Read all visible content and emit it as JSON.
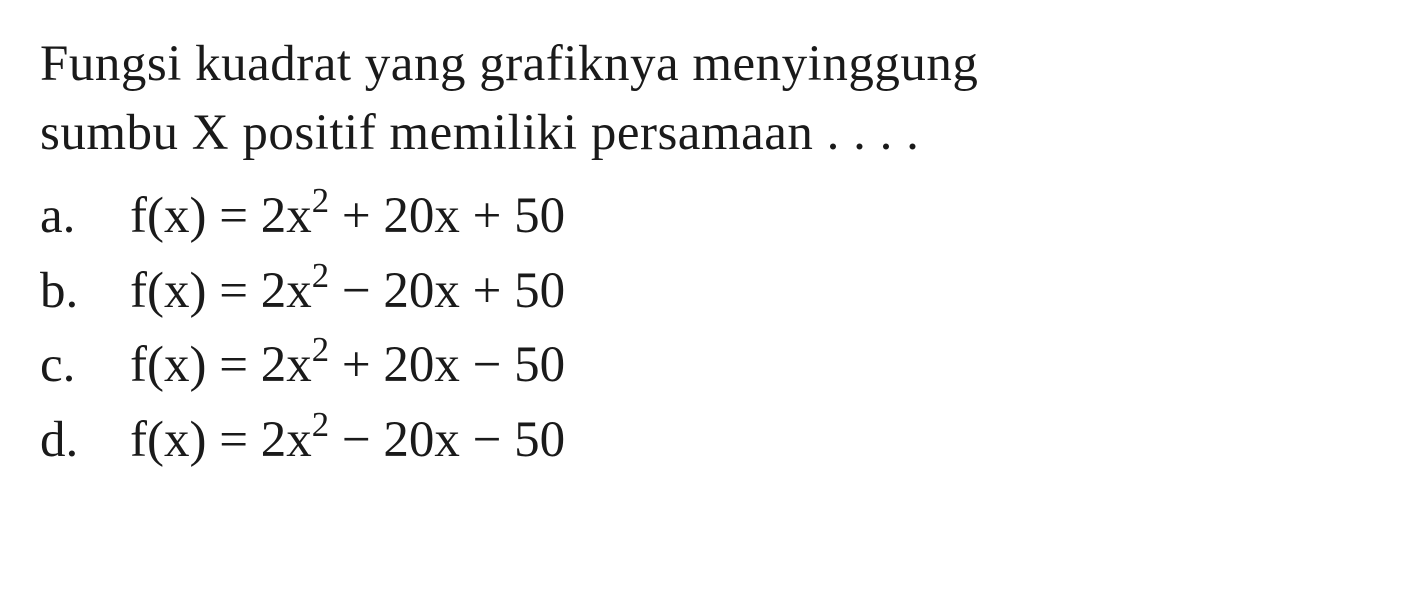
{
  "question": {
    "line1": "Fungsi kuadrat yang grafiknya menyinggung",
    "line2": "sumbu X positif memiliki persamaan . . . ."
  },
  "options": [
    {
      "letter": "a.",
      "prefix": "f(x) = 2x",
      "exponent": "2",
      "suffix": " + 20x + 50"
    },
    {
      "letter": "b.",
      "prefix": "f(x) = 2x",
      "exponent": "2",
      "suffix": " − 20x + 50"
    },
    {
      "letter": "c.",
      "prefix": "f(x) = 2x",
      "exponent": "2",
      "suffix": " + 20x − 50"
    },
    {
      "letter": "d.",
      "prefix": "f(x) = 2x",
      "exponent": "2",
      "suffix": " − 20x − 50"
    }
  ],
  "styling": {
    "font_family": "Times New Roman",
    "font_size_pt": 38,
    "text_color": "#1a1a1a",
    "background_color": "#ffffff",
    "line_height": 1.35
  }
}
